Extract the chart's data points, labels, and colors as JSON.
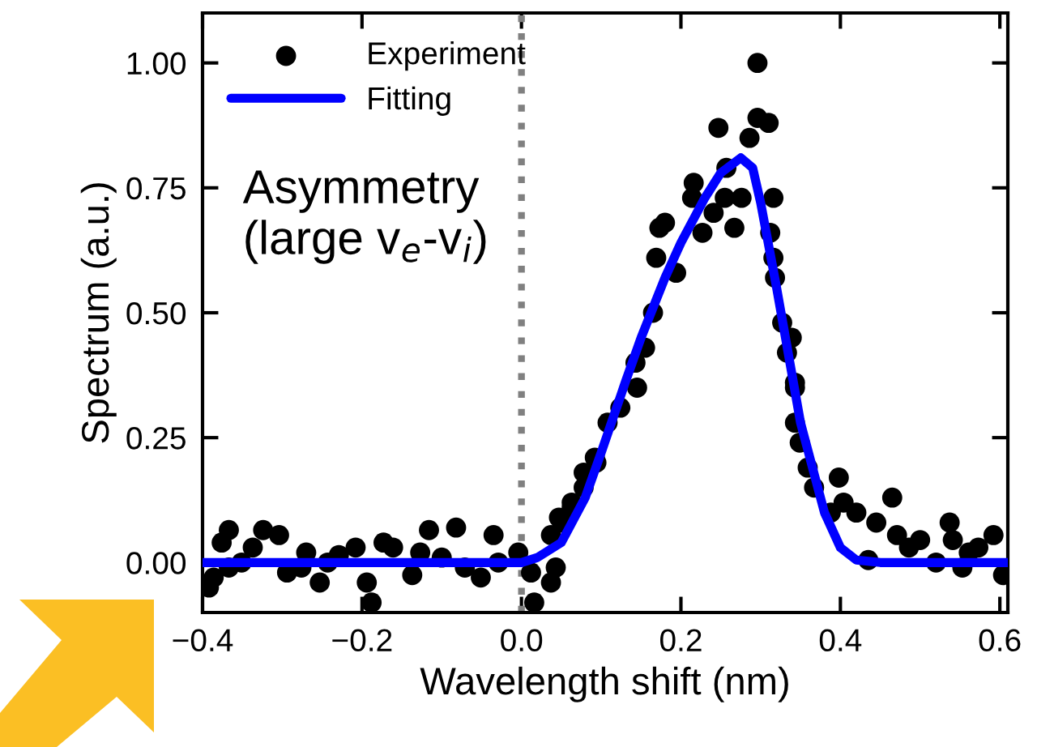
{
  "chart_data": {
    "type": "scatter",
    "xlabel": "Wavelength shift (nm)",
    "ylabel": "Spectrum (a.u.)",
    "annotations": [
      "Asymmetry\n(large v$_{e}$-v$_{i}$)"
    ],
    "xlim": [
      -0.4,
      0.61
    ],
    "ylim": [
      -0.1,
      1.1
    ],
    "xticks": [
      {
        "value": -0.4,
        "label": "−0.4"
      },
      {
        "value": -0.2,
        "label": "−0.2"
      },
      {
        "value": 0.0,
        "label": "0.0"
      },
      {
        "value": 0.2,
        "label": "0.2"
      },
      {
        "value": 0.4,
        "label": "0.4"
      },
      {
        "value": 0.6,
        "label": "0.6"
      }
    ],
    "yticks": [
      {
        "value": 0.0,
        "label": "0.00"
      },
      {
        "value": 0.25,
        "label": "0.25"
      },
      {
        "value": 0.5,
        "label": "0.50"
      },
      {
        "value": 0.75,
        "label": "0.75"
      },
      {
        "value": 1.0,
        "label": "1.00"
      }
    ],
    "ref_lines": [
      {
        "axis": "x",
        "value": 0,
        "color": "#808080",
        "line_style": "dotted"
      }
    ],
    "legend": "top left",
    "grid": false,
    "series": [
      {
        "name": "Experiment",
        "color": "#000000",
        "marker": "circle",
        "x": [
          -0.367,
          -0.376,
          -0.392,
          -0.386,
          -0.351,
          -0.324,
          -0.304,
          -0.337,
          -0.294,
          -0.27,
          -0.253,
          -0.229,
          -0.208,
          -0.194,
          -0.188,
          -0.173,
          -0.161,
          -0.137,
          -0.116,
          -0.127,
          -0.082,
          -0.1,
          -0.071,
          -0.051,
          -0.035,
          -0.029,
          -0.004,
          0.012,
          0.016,
          0.037,
          0.043,
          0.051,
          0.063,
          0.078,
          0.092,
          -0.276,
          -0.243,
          -0.367,
          0.037,
          0.047,
          0.063,
          0.078,
          0.094,
          0.108,
          0.124,
          0.145,
          0.143,
          0.155,
          0.165,
          0.169,
          0.194,
          0.173,
          0.18,
          0.214,
          0.216,
          0.227,
          0.241,
          0.255,
          0.257,
          0.267,
          0.276,
          0.247,
          0.286,
          0.296,
          0.296,
          0.31,
          0.316,
          0.312,
          0.316,
          0.318,
          0.327,
          0.339,
          0.333,
          0.343,
          0.343,
          0.343,
          0.349,
          0.359,
          0.367,
          0.398,
          0.388,
          0.404,
          0.42,
          0.465,
          0.445,
          0.435,
          0.471,
          0.5,
          0.537,
          0.541,
          0.52,
          0.553,
          0.592,
          0.573,
          0.604,
          0.561,
          0.486
        ],
        "values": [
          0.065,
          0.04,
          -0.05,
          -0.03,
          0.0,
          0.065,
          0.055,
          0.03,
          -0.02,
          0.02,
          -0.04,
          0.015,
          0.03,
          -0.04,
          -0.08,
          0.04,
          0.03,
          -0.025,
          0.065,
          0.02,
          0.07,
          0.01,
          -0.01,
          -0.03,
          0.055,
          0.0,
          0.02,
          -0.02,
          -0.08,
          -0.04,
          -0.01,
          0.08,
          0.11,
          0.18,
          0.21,
          -0.01,
          0.0,
          -0.01,
          0.055,
          0.09,
          0.12,
          0.15,
          0.2,
          0.28,
          0.31,
          0.35,
          0.4,
          0.43,
          0.5,
          0.61,
          0.58,
          0.67,
          0.68,
          0.73,
          0.76,
          0.66,
          0.7,
          0.73,
          0.79,
          0.67,
          0.73,
          0.87,
          0.85,
          0.89,
          1.0,
          0.88,
          0.73,
          0.66,
          0.61,
          0.57,
          0.48,
          0.45,
          0.42,
          0.35,
          0.36,
          0.28,
          0.24,
          0.19,
          0.15,
          0.17,
          0.1,
          0.12,
          0.1,
          0.13,
          0.08,
          0.005,
          0.055,
          0.045,
          0.08,
          0.045,
          0.0,
          -0.01,
          0.055,
          0.03,
          -0.025,
          0.02,
          0.03
        ]
      },
      {
        "name": "Fitting",
        "type": "line",
        "color": "#0000ff",
        "marker": "none",
        "line_style": "solid",
        "x": [
          -0.4,
          -0.2,
          0.0,
          0.02,
          0.05,
          0.08,
          0.1,
          0.13,
          0.15,
          0.18,
          0.2,
          0.23,
          0.25,
          0.275,
          0.29,
          0.3,
          0.32,
          0.35,
          0.38,
          0.4,
          0.42,
          0.45,
          0.5,
          0.61
        ],
        "values": [
          0.0,
          0.0,
          0.0,
          0.01,
          0.04,
          0.13,
          0.22,
          0.36,
          0.45,
          0.57,
          0.64,
          0.73,
          0.78,
          0.81,
          0.79,
          0.72,
          0.55,
          0.28,
          0.1,
          0.03,
          0.005,
          0.0,
          0.0,
          0.0
        ]
      }
    ]
  }
}
